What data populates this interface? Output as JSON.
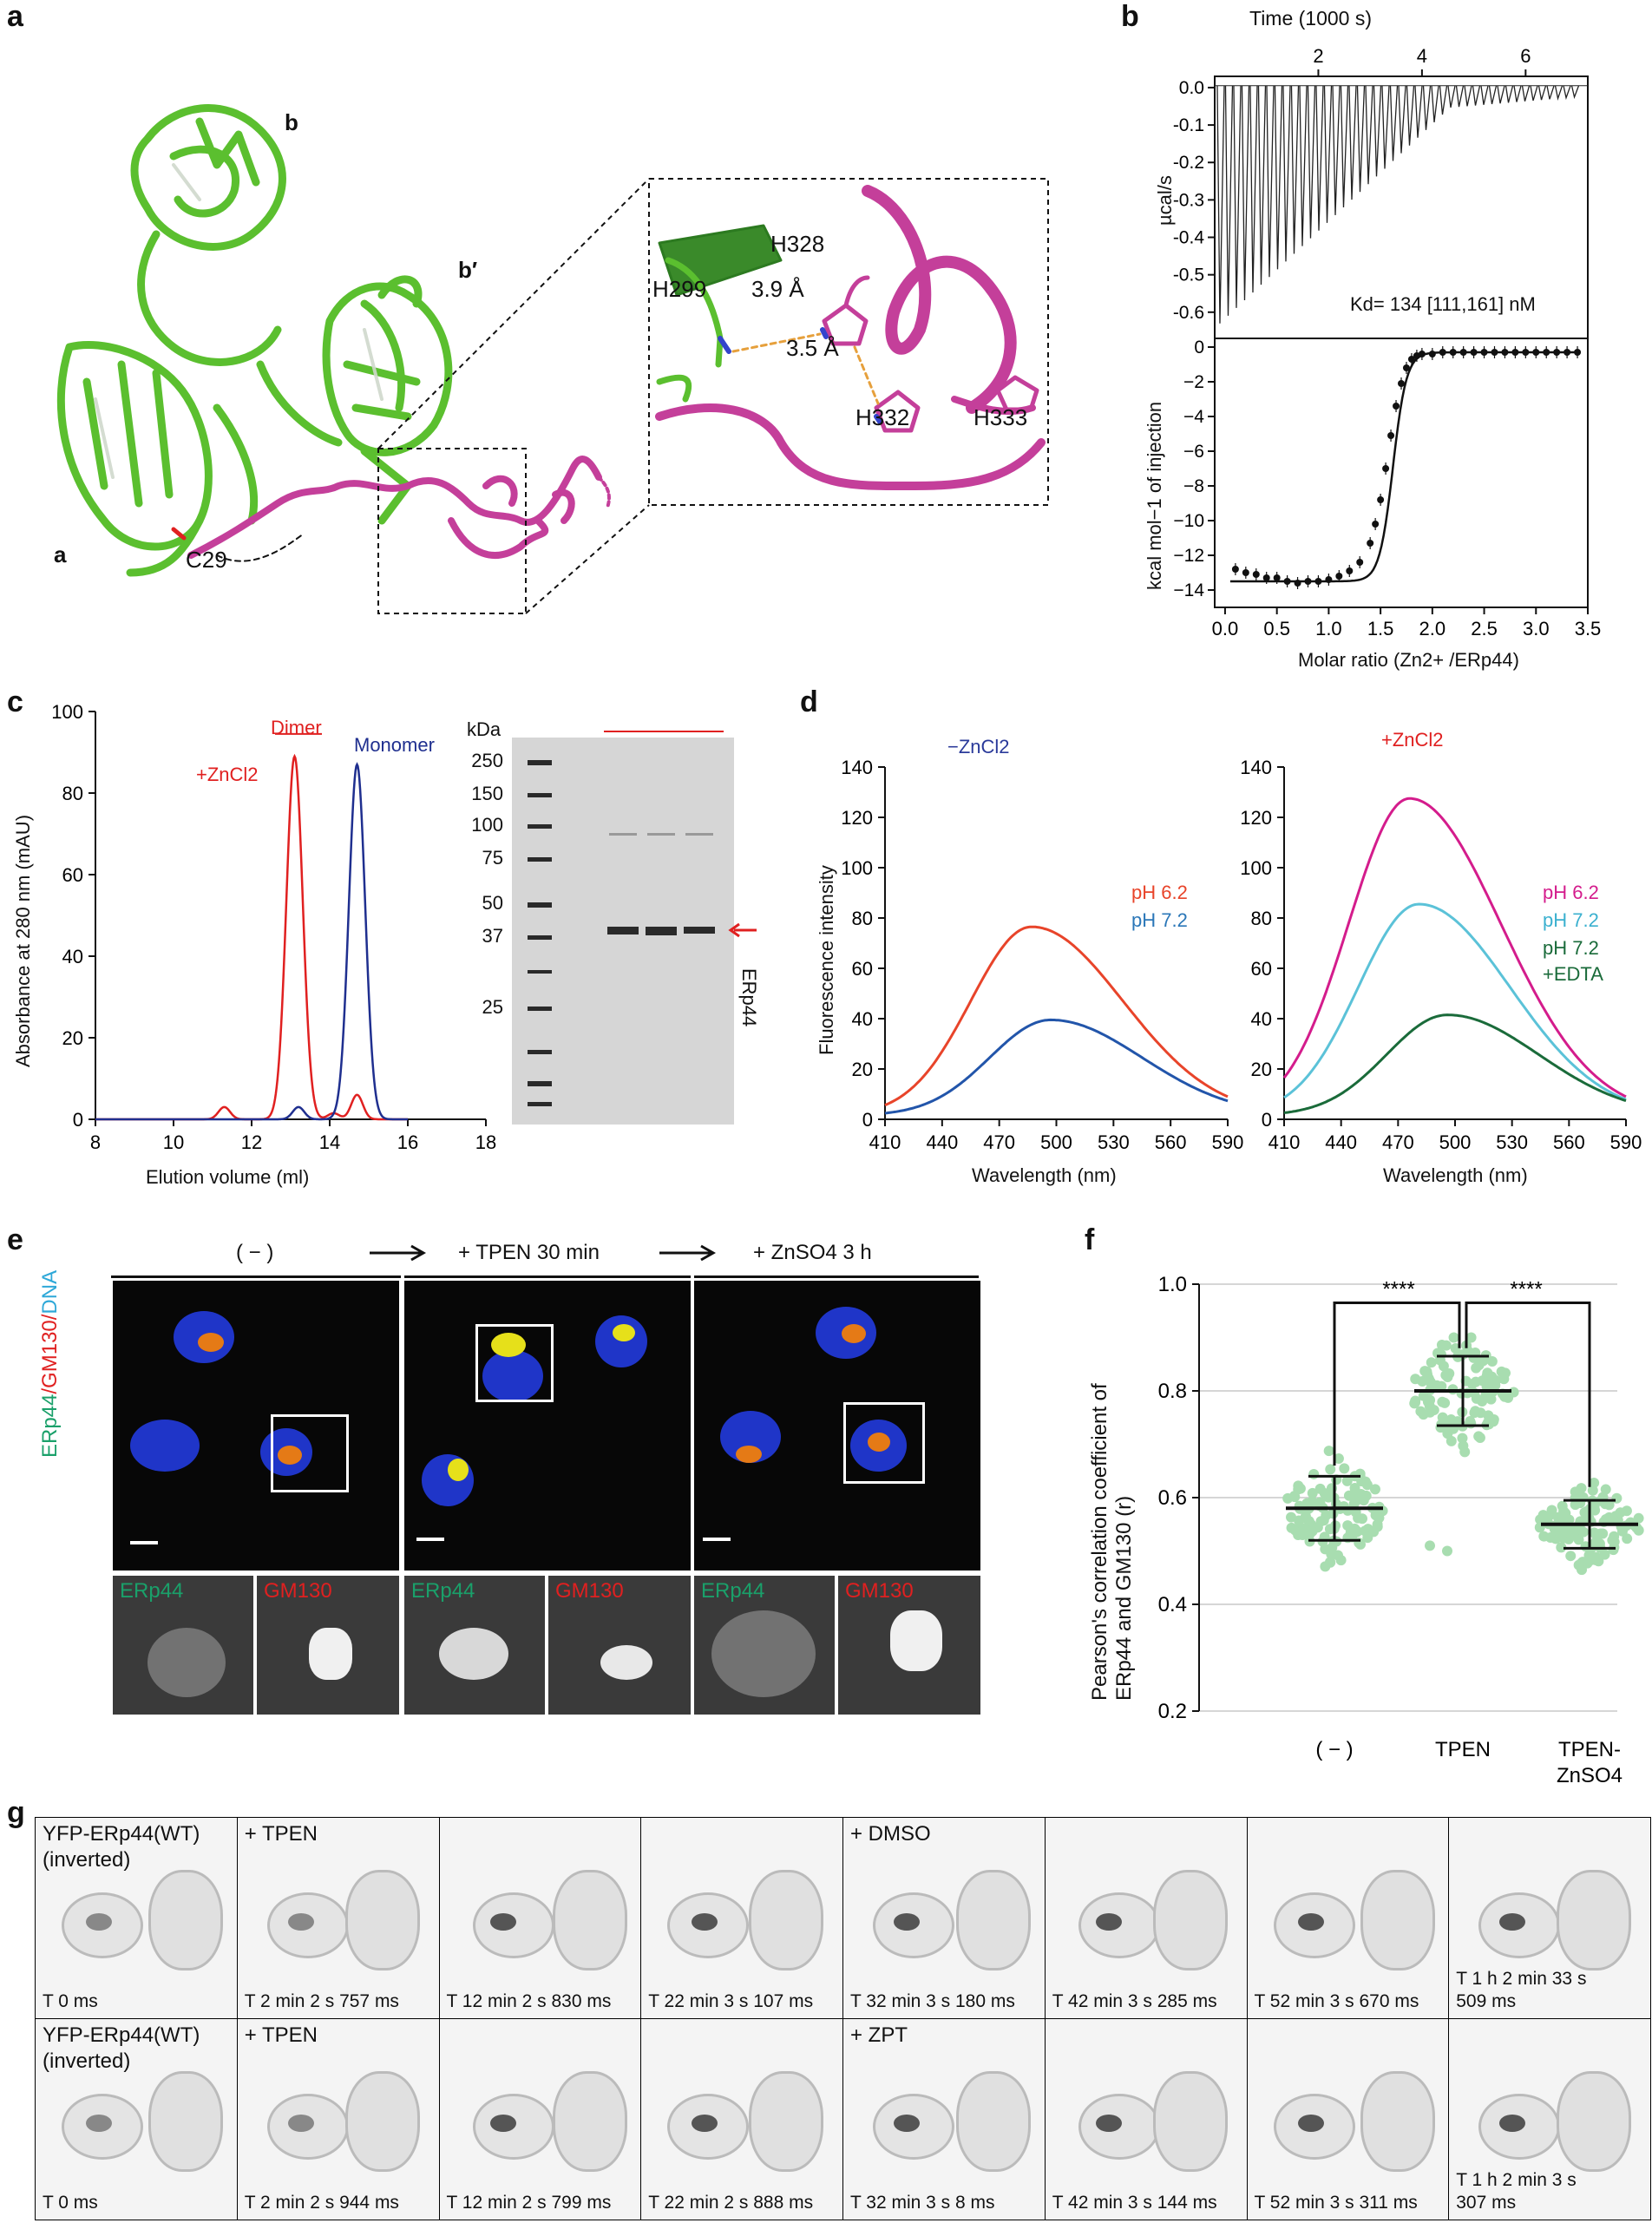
{
  "panel_labels": {
    "a": "a",
    "b": "b",
    "c": "c",
    "d": "d",
    "e": "e",
    "f": "f",
    "g": "g"
  },
  "panel_a": {
    "domain_b": "b",
    "domain_bprime": "b′",
    "domain_a": "a",
    "c29": "C29",
    "h328": "H328",
    "h299": "H299",
    "h332": "H332",
    "h333": "H333",
    "dist1": "3.9 Å",
    "dist2": "3.5 Å",
    "colors": {
      "protein": "#5bbf2f",
      "tail": "#c43f9a"
    }
  },
  "panel_b": {
    "top_xlabel": "Time (1000 s)",
    "top_ylabel": "µcal/s",
    "bottom_xlabel": "Molar ratio (Zn2+ /ERp44)",
    "bottom_ylabel": "kcal mol−1 of injection",
    "kd_text": "Kd= 134 [111,161] nM"
  },
  "panel_c": {
    "dimer": "Dimer",
    "monomer": "Monomer",
    "zncl2": "+ZnCl2",
    "kda": "kDa",
    "erp44": "ERp44",
    "ladder": [
      "250",
      "150",
      "100",
      "75",
      "50",
      "37",
      "25"
    ]
  },
  "panel_d": {
    "left_title": "−ZnCl2",
    "right_title": "+ZnCl2",
    "left_legend": [
      "pH 6.2",
      "pH 7.2"
    ],
    "right_legend": [
      "pH 6.2",
      "pH 7.2",
      "pH 7.2",
      "+EDTA"
    ]
  },
  "panel_e": {
    "cond1": "( − )",
    "cond2": "+ TPEN 30 min",
    "cond3": "+ ZnSO4 3 h",
    "ylabel_erp44": "ERp44",
    "ylabel_gm130": "/GM130/",
    "ylabel_dna": "DNA",
    "inset_erp44": "ERp44",
    "inset_gm130": "GM130"
  },
  "panel_f": {
    "categories": [
      "( − )",
      "TPEN",
      "TPEN-\nZnSO4"
    ],
    "ylabel": "Pearson's correlation coefficient of\nERp44 and GM130 (r)",
    "sig": "****"
  },
  "panel_g": {
    "row1": [
      {
        "label": "YFP-ERp44(WT)\n(inverted)",
        "time": "T 0 ms"
      },
      {
        "label": "+ TPEN",
        "time": "T 2 min 2 s 757 ms"
      },
      {
        "label": "",
        "time": "T 12 min 2 s 830 ms"
      },
      {
        "label": "",
        "time": "T 22 min 3 s 107 ms"
      },
      {
        "label": "+ DMSO",
        "time": "T 32 min 3 s 180 ms"
      },
      {
        "label": "",
        "time": "T 42 min 3 s 285 ms"
      },
      {
        "label": "",
        "time": "T 52 min 3 s 670 ms"
      },
      {
        "label": "",
        "time": "T 1 h 2 min 33 s\n509 ms"
      }
    ],
    "row2": [
      {
        "label": "YFP-ERp44(WT)\n(inverted)",
        "time": "T 0 ms"
      },
      {
        "label": "+ TPEN",
        "time": "T 2 min 2 s 944 ms"
      },
      {
        "label": "",
        "time": "T 12 min 2 s 799 ms"
      },
      {
        "label": "",
        "time": "T 22 min 2 s 888 ms"
      },
      {
        "label": "+ ZPT",
        "time": "T 32 min 3 s 8 ms"
      },
      {
        "label": "",
        "time": "T 42 min 3 s 144 ms"
      },
      {
        "label": "",
        "time": "T 52 min 3 s 311 ms"
      },
      {
        "label": "",
        "time": "T 1 h 2 min 3 s\n307 ms"
      }
    ]
  },
  "chart_data": [
    {
      "panel": "b-top",
      "type": "line",
      "xlabel": "Time (1000 s)",
      "ylabel": "µcal/s",
      "xlim": [
        0,
        7.2
      ],
      "ylim": [
        -0.67,
        0.03
      ],
      "xticks": [
        2,
        4,
        6
      ],
      "yticks": [
        0.0,
        -0.1,
        -0.2,
        -0.3,
        -0.4,
        -0.5,
        -0.6
      ],
      "n_injections": 44
    },
    {
      "panel": "b-bottom",
      "type": "scatter",
      "xlabel": "Molar ratio (Zn2+ /ERp44)",
      "ylabel": "kcal mol−1 of injection",
      "xlim": [
        -0.1,
        3.5
      ],
      "ylim": [
        -15,
        0.5
      ],
      "xticks": [
        0.0,
        0.5,
        1.0,
        1.5,
        2.0,
        2.5,
        3.0,
        3.5
      ],
      "yticks": [
        0,
        -2,
        -4,
        -6,
        -8,
        -10,
        -12,
        -14
      ],
      "x": [
        0.1,
        0.2,
        0.3,
        0.4,
        0.5,
        0.6,
        0.7,
        0.8,
        0.9,
        1.0,
        1.1,
        1.2,
        1.3,
        1.4,
        1.45,
        1.5,
        1.55,
        1.6,
        1.65,
        1.7,
        1.75,
        1.8,
        1.85,
        1.9,
        2.0,
        2.1,
        2.2,
        2.3,
        2.4,
        2.5,
        2.6,
        2.7,
        2.8,
        2.9,
        3.0,
        3.1,
        3.2,
        3.3,
        3.4
      ],
      "y": [
        -12.8,
        -13.0,
        -13.1,
        -13.3,
        -13.3,
        -13.5,
        -13.6,
        -13.5,
        -13.5,
        -13.4,
        -13.2,
        -12.9,
        -12.4,
        -11.3,
        -10.2,
        -8.8,
        -7.0,
        -5.1,
        -3.4,
        -2.1,
        -1.2,
        -0.7,
        -0.5,
        -0.4,
        -0.4,
        -0.3,
        -0.3,
        -0.3,
        -0.3,
        -0.3,
        -0.3,
        -0.3,
        -0.3,
        -0.3,
        -0.3,
        -0.3,
        -0.3,
        -0.3,
        -0.3
      ]
    },
    {
      "panel": "c",
      "type": "line",
      "xlabel": "Elution volume (ml)",
      "ylabel": "Absorbance at 280 nm (mAU)",
      "xlim": [
        8,
        18
      ],
      "ylim": [
        0,
        100
      ],
      "xticks": [
        8,
        10,
        12,
        14,
        16,
        18
      ],
      "yticks": [
        0,
        20,
        40,
        60,
        80,
        100
      ],
      "series": [
        {
          "name": "+ZnCl2",
          "color": "#e02020",
          "peaks": [
            [
              13.1,
              89,
              0.28
            ],
            [
              14.7,
              6,
              0.2
            ],
            [
              11.3,
              3,
              0.2
            ],
            [
              14.1,
              1.5,
              0.2
            ]
          ]
        },
        {
          "name": "",
          "color": "#1f2f8f",
          "peaks": [
            [
              14.7,
              87,
              0.28
            ],
            [
              13.2,
              3,
              0.2
            ]
          ]
        }
      ]
    },
    {
      "panel": "d-left",
      "type": "line",
      "xlabel": "Wavelength (nm)",
      "ylabel": "Fluorescence intensity",
      "xlim": [
        410,
        590
      ],
      "ylim": [
        0,
        140
      ],
      "xticks": [
        410,
        440,
        470,
        500,
        530,
        560,
        590
      ],
      "yticks": [
        0,
        20,
        40,
        60,
        80,
        100,
        120,
        140
      ],
      "series": [
        {
          "name": "pH 6.2",
          "color": "#e8442a",
          "peak": 75,
          "center": 487
        },
        {
          "name": "pH 7.2",
          "color": "#2255aa",
          "peak": 38,
          "center": 497
        }
      ]
    },
    {
      "panel": "d-right",
      "type": "line",
      "xlabel": "Wavelength (nm)",
      "ylabel": "",
      "xlim": [
        410,
        590
      ],
      "ylim": [
        0,
        140
      ],
      "xticks": [
        410,
        440,
        470,
        500,
        530,
        560,
        590
      ],
      "yticks": [
        0,
        20,
        40,
        60,
        80,
        100,
        120,
        140
      ],
      "series": [
        {
          "name": "pH 6.2",
          "color": "#d41c8c",
          "peak": 126,
          "center": 476
        },
        {
          "name": "pH 7.2",
          "color": "#5bc2d8",
          "peak": 84,
          "center": 481
        },
        {
          "name": "pH 7.2 +EDTA",
          "color": "#1a6b3a",
          "peak": 40,
          "center": 496
        }
      ]
    },
    {
      "panel": "f",
      "type": "scatter",
      "ylabel": "Pearson's correlation coefficient of ERp44 and GM130 (r)",
      "ylim": [
        0.2,
        1.0
      ],
      "yticks": [
        0.2,
        0.4,
        0.6,
        0.8,
        1.0
      ],
      "categories": [
        "( − )",
        "TPEN",
        "TPEN-ZnSO4"
      ],
      "series": [
        {
          "name": "( − )",
          "mean": 0.58,
          "sd": 0.06,
          "min": 0.44,
          "max": 0.69
        },
        {
          "name": "TPEN",
          "mean": 0.8,
          "sd": 0.065,
          "min": 0.5,
          "max": 0.9
        },
        {
          "name": "TPEN-ZnSO4",
          "mean": 0.55,
          "sd": 0.045,
          "min": 0.44,
          "max": 0.67
        }
      ],
      "significance": [
        [
          "( − )",
          "TPEN",
          "****"
        ],
        [
          "TPEN",
          "TPEN-ZnSO4",
          "****"
        ]
      ]
    }
  ]
}
